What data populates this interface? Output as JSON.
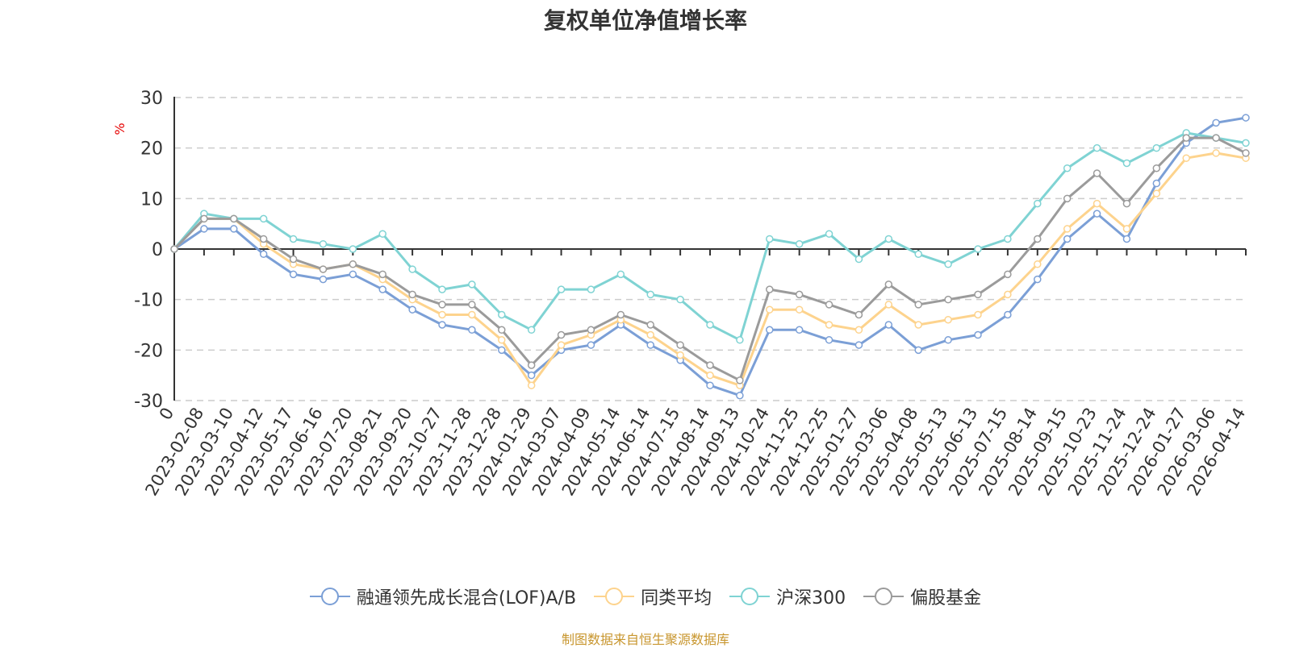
{
  "chart_data": {
    "type": "line",
    "title": "复权单位净值增长率",
    "ylabel": "%",
    "ylim": [
      -30,
      30
    ],
    "yticks": [
      30,
      20,
      10,
      0,
      -10,
      -20,
      -30
    ],
    "grid": true,
    "legend_position": "bottom",
    "source": "制图数据来自恒生聚源数据库",
    "categories": [
      "0",
      "2023-02-08",
      "2023-03-10",
      "2023-04-12",
      "2023-05-17",
      "2023-06-16",
      "2023-07-20",
      "2023-08-21",
      "2023-09-20",
      "2023-10-27",
      "2023-11-28",
      "2023-12-28",
      "2024-01-29",
      "2024-03-07",
      "2024-04-09",
      "2024-05-14",
      "2024-06-14",
      "2024-07-15",
      "2024-08-14",
      "2024-09-13",
      "2024-10-24",
      "2024-11-25",
      "2024-12-25",
      "2025-01-27",
      "2025-03-06",
      "2025-04-08",
      "2025-05-13",
      "2025-06-13",
      "2025-07-15",
      "2025-08-14",
      "2025-09-15",
      "2025-10-23",
      "2025-11-24",
      "2025-12-24",
      "2026-01-27",
      "2026-03-06",
      "2026-04-14"
    ],
    "series": [
      {
        "name": "融通领先成长混合(LOF)A/B",
        "color": "#7b9fd6",
        "values": [
          0,
          4,
          4,
          -1,
          -5,
          -6,
          -5,
          -8,
          -12,
          -15,
          -16,
          -20,
          -25,
          -20,
          -19,
          -15,
          -19,
          -22,
          -27,
          -29,
          -16,
          -16,
          -18,
          -19,
          -15,
          -20,
          -18,
          -17,
          -13,
          -6,
          2,
          7,
          2,
          13,
          21,
          25,
          26
        ]
      },
      {
        "name": "同类平均",
        "color": "#fdd38d",
        "values": [
          0,
          6,
          6,
          1,
          -3,
          -4,
          -3,
          -6,
          -10,
          -13,
          -13,
          -18,
          -27,
          -19,
          -17,
          -14,
          -17,
          -21,
          -25,
          -27,
          -12,
          -12,
          -15,
          -16,
          -11,
          -15,
          -14,
          -13,
          -9,
          -3,
          4,
          9,
          4,
          11,
          18,
          19,
          18
        ]
      },
      {
        "name": "沪深300",
        "color": "#7fd3d3",
        "values": [
          0,
          7,
          6,
          6,
          2,
          1,
          0,
          3,
          -4,
          -8,
          -7,
          -13,
          -16,
          -8,
          -8,
          -5,
          -9,
          -10,
          -15,
          -18,
          2,
          1,
          3,
          -2,
          2,
          -1,
          -3,
          0,
          2,
          9,
          16,
          20,
          17,
          20,
          23,
          22,
          21
        ]
      },
      {
        "name": "偏股基金",
        "color": "#9b9b9b",
        "values": [
          0,
          6,
          6,
          2,
          -2,
          -4,
          -3,
          -5,
          -9,
          -11,
          -11,
          -16,
          -23,
          -17,
          -16,
          -13,
          -15,
          -19,
          -23,
          -26,
          -8,
          -9,
          -11,
          -13,
          -7,
          -11,
          -10,
          -9,
          -5,
          2,
          10,
          15,
          9,
          16,
          22,
          22,
          19
        ]
      }
    ]
  }
}
